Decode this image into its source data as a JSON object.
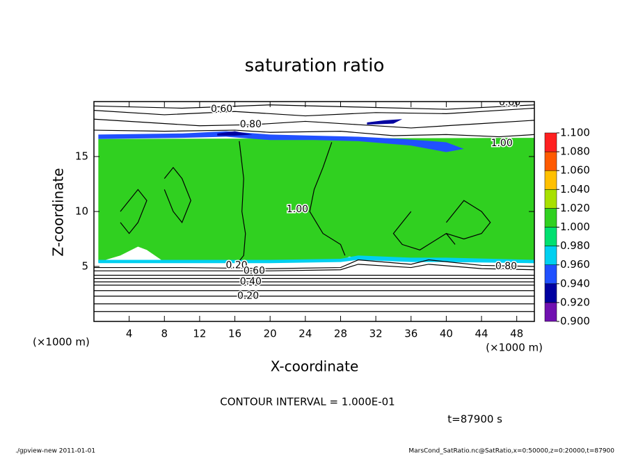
{
  "chart_data": {
    "type": "contour",
    "title": "saturation ratio",
    "xlabel": "X-coordinate",
    "ylabel": "Z-coordinate",
    "xunit": "(×1000 m)",
    "yunit": "(×1000 m)",
    "xlim": [
      0,
      50
    ],
    "ylim": [
      0,
      20
    ],
    "xticks": [
      4,
      8,
      12,
      16,
      20,
      24,
      28,
      32,
      36,
      40,
      44,
      48
    ],
    "yticks": [
      5,
      10,
      15
    ],
    "levels": [
      {
        "value": 0.9,
        "label": "0.900"
      },
      {
        "value": 0.92,
        "label": "0.920"
      },
      {
        "value": 0.94,
        "label": "0.940"
      },
      {
        "value": 0.96,
        "label": "0.960"
      },
      {
        "value": 0.98,
        "label": "0.980"
      },
      {
        "value": 1.0,
        "label": "1.000"
      },
      {
        "value": 1.02,
        "label": "1.020"
      },
      {
        "value": 1.04,
        "label": "1.040"
      },
      {
        "value": 1.06,
        "label": "1.060"
      },
      {
        "value": 1.08,
        "label": "1.080"
      },
      {
        "value": 1.1,
        "label": "1.100"
      }
    ],
    "level_colors": [
      "#7010b0",
      "#0000a0",
      "#2050ff",
      "#00d0f0",
      "#00e070",
      "#30d020",
      "#a8e000",
      "#ffc000",
      "#ff5a00",
      "#ff2020"
    ],
    "regions": [
      {
        "value": 1.005,
        "x": [
          0.5,
          50,
          50,
          45,
          40,
          36,
          32,
          29,
          28,
          24,
          16,
          8,
          6,
          5,
          3,
          0.5
        ],
        "z": [
          16.6,
          16.7,
          5.3,
          5.4,
          5.5,
          5.6,
          5.6,
          5.9,
          5.5,
          5.4,
          5.4,
          5.4,
          6.5,
          6.8,
          6.0,
          5.4
        ]
      },
      {
        "value": 0.97,
        "x": [
          0.5,
          10,
          20,
          28,
          30,
          36,
          40,
          50,
          50,
          40,
          36,
          30,
          28,
          20,
          10,
          0.5
        ],
        "z": [
          5.6,
          5.6,
          5.6,
          5.7,
          6.0,
          5.8,
          5.8,
          5.6,
          5.3,
          5.4,
          5.4,
          5.6,
          5.4,
          5.3,
          5.3,
          5.3
        ]
      },
      {
        "value": 0.95,
        "x": [
          0.5,
          10,
          15,
          20,
          25,
          30,
          35,
          40,
          42,
          40,
          36,
          30,
          25,
          20,
          15,
          10,
          0.5
        ],
        "z": [
          17.0,
          17.1,
          17.3,
          17.0,
          16.9,
          16.8,
          16.6,
          16.3,
          15.7,
          15.4,
          16.0,
          16.4,
          16.5,
          16.5,
          16.8,
          16.7,
          16.6
        ]
      },
      {
        "value": 0.93,
        "x": [
          31,
          33,
          35,
          34,
          31
        ],
        "z": [
          18.1,
          18.3,
          18.4,
          18.0,
          17.9
        ]
      },
      {
        "value": 0.93,
        "x": [
          14,
          16,
          18,
          16,
          14
        ],
        "z": [
          17.1,
          17.3,
          17.0,
          16.9,
          16.9
        ]
      }
    ],
    "contours": [
      {
        "x": [
          0,
          50
        ],
        "z": [
          0.9,
          0.9
        ]
      },
      {
        "x": [
          0,
          50
        ],
        "z": [
          1.6,
          1.6
        ]
      },
      {
        "x": [
          0,
          50
        ],
        "z": [
          2.3,
          2.3
        ]
      },
      {
        "x": [
          0,
          50
        ],
        "z": [
          2.8,
          2.8
        ]
      },
      {
        "x": [
          0,
          50
        ],
        "z": [
          3.3,
          3.3
        ]
      },
      {
        "x": [
          0,
          50
        ],
        "z": [
          3.6,
          3.6
        ]
      },
      {
        "x": [
          0,
          50
        ],
        "z": [
          3.9,
          3.9
        ]
      },
      {
        "x": [
          0,
          50
        ],
        "z": [
          4.2,
          4.2
        ]
      },
      {
        "x": [
          0,
          20,
          28,
          30,
          36,
          38,
          44,
          50
        ],
        "z": [
          4.6,
          4.6,
          4.7,
          5.2,
          4.9,
          5.2,
          4.8,
          4.7
        ]
      },
      {
        "x": [
          0,
          10,
          20,
          28,
          30,
          36,
          38,
          44,
          50
        ],
        "z": [
          4.9,
          4.9,
          4.8,
          4.9,
          5.6,
          5.2,
          5.6,
          5.1,
          5.0
        ]
      },
      {
        "x": [
          0,
          10,
          20,
          30,
          40,
          50
        ],
        "z": [
          19.6,
          19.4,
          19.7,
          19.5,
          19.3,
          19.7
        ]
      },
      {
        "x": [
          0,
          8,
          16,
          24,
          32,
          40,
          48,
          50
        ],
        "z": [
          19.2,
          18.8,
          19.1,
          18.7,
          19.0,
          18.9,
          19.3,
          19.4
        ]
      },
      {
        "x": [
          0,
          6,
          12,
          18,
          24,
          30,
          36,
          44,
          50
        ],
        "z": [
          18.4,
          18.1,
          17.8,
          17.9,
          18.2,
          17.9,
          17.6,
          18.0,
          18.3
        ]
      },
      {
        "x": [
          0,
          8,
          16,
          20,
          28,
          34,
          40,
          46,
          50
        ],
        "z": [
          17.4,
          17.3,
          17.4,
          17.2,
          17.3,
          16.9,
          17.0,
          16.8,
          17.0
        ]
      },
      {
        "x": [
          16.5,
          17,
          16.8,
          17.2,
          17,
          16.5
        ],
        "z": [
          16.4,
          13,
          10,
          8,
          6,
          5.5
        ]
      },
      {
        "x": [
          27,
          26,
          25,
          24.5,
          26,
          28,
          28.5
        ],
        "z": [
          16.3,
          14,
          12,
          10,
          8,
          7,
          6
        ]
      },
      {
        "x": [
          36,
          35,
          34,
          35,
          37,
          38,
          40,
          41
        ],
        "z": [
          10,
          9,
          8,
          7,
          6.5,
          7,
          8,
          7
        ]
      },
      {
        "x": [
          3,
          4,
          5,
          6,
          5,
          4,
          3
        ],
        "z": [
          10,
          11,
          12,
          11,
          9,
          8,
          9
        ]
      },
      {
        "x": [
          40,
          41,
          42,
          43,
          44,
          45,
          44,
          42,
          40
        ],
        "z": [
          9,
          10,
          11,
          10.5,
          10,
          9,
          8,
          7.5,
          8
        ]
      },
      {
        "x": [
          8,
          9,
          10,
          11,
          10,
          9,
          8
        ],
        "z": [
          13,
          14,
          13,
          11,
          9,
          10,
          12
        ]
      }
    ],
    "contour_labels": [
      {
        "text": "0.60",
        "x": 14.5,
        "z": 19.3
      },
      {
        "text": "0.80",
        "x": 17.8,
        "z": 17.9
      },
      {
        "text": "0.60",
        "x": 47.2,
        "z": 19.9
      },
      {
        "text": "1.00",
        "x": 46.3,
        "z": 16.2
      },
      {
        "text": "1.00",
        "x": 23.1,
        "z": 10.2
      },
      {
        "text": "0.20",
        "x": 16.2,
        "z": 5.1
      },
      {
        "text": "0.60",
        "x": 18.2,
        "z": 4.6
      },
      {
        "text": "0.40",
        "x": 17.8,
        "z": 3.6
      },
      {
        "text": "0.20",
        "x": 17.5,
        "z": 2.3
      },
      {
        "text": "0.80",
        "x": 46.8,
        "z": 5.0
      }
    ],
    "contour_interval_text": "CONTOUR INTERVAL = 1.000E-01",
    "time_text": "t=87900 s",
    "footer_left": "./gpview-new  2011-01-01",
    "footer_right": "MarsCond_SatRatio.nc@SatRatio,x=0:50000,z=0:20000,t=87900"
  }
}
